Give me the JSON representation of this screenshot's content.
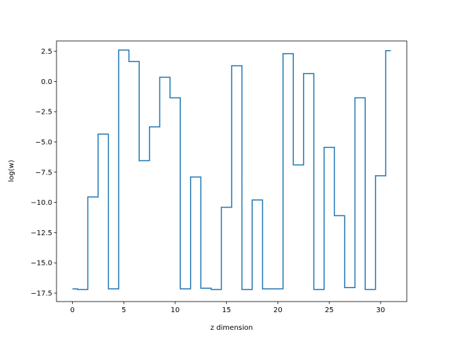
{
  "chart_data": {
    "type": "line",
    "drawstyle": "steps-mid",
    "title": "",
    "xlabel": "z dimension",
    "ylabel": "log(w)",
    "xlim": [
      -1.55,
      32.55
    ],
    "ylim": [
      -18.2,
      3.35
    ],
    "xticks": [
      0,
      5,
      10,
      15,
      20,
      25,
      30
    ],
    "yticks": [
      2.5,
      0.0,
      -2.5,
      -5.0,
      -7.5,
      -10.0,
      -12.5,
      -15.0,
      -17.5
    ],
    "ytick_labels": [
      "2.5",
      "0.0",
      "−2.5",
      "−5.0",
      "−7.5",
      "−10.0",
      "−12.5",
      "−15.0",
      "−17.5"
    ],
    "grid": false,
    "line_color": "#1f77b4",
    "series": [
      {
        "x": [
          0,
          1,
          2,
          3,
          4,
          5,
          6,
          7,
          8,
          9,
          10,
          11,
          12,
          13,
          14,
          15,
          16,
          17,
          18,
          19,
          20,
          21,
          22,
          23,
          24,
          25,
          26,
          27,
          28,
          29,
          30,
          31
        ],
        "values": [
          -17.15,
          -17.2,
          -9.55,
          -4.35,
          -17.15,
          2.6,
          1.65,
          -6.55,
          -3.75,
          0.35,
          -1.35,
          -17.15,
          -7.9,
          -17.1,
          -17.2,
          -10.4,
          1.3,
          -17.2,
          -9.8,
          -17.15,
          -17.15,
          2.3,
          -6.9,
          0.65,
          -17.2,
          -5.45,
          -11.1,
          -17.05,
          -1.35,
          -17.2,
          -7.8,
          2.55
        ]
      }
    ]
  }
}
